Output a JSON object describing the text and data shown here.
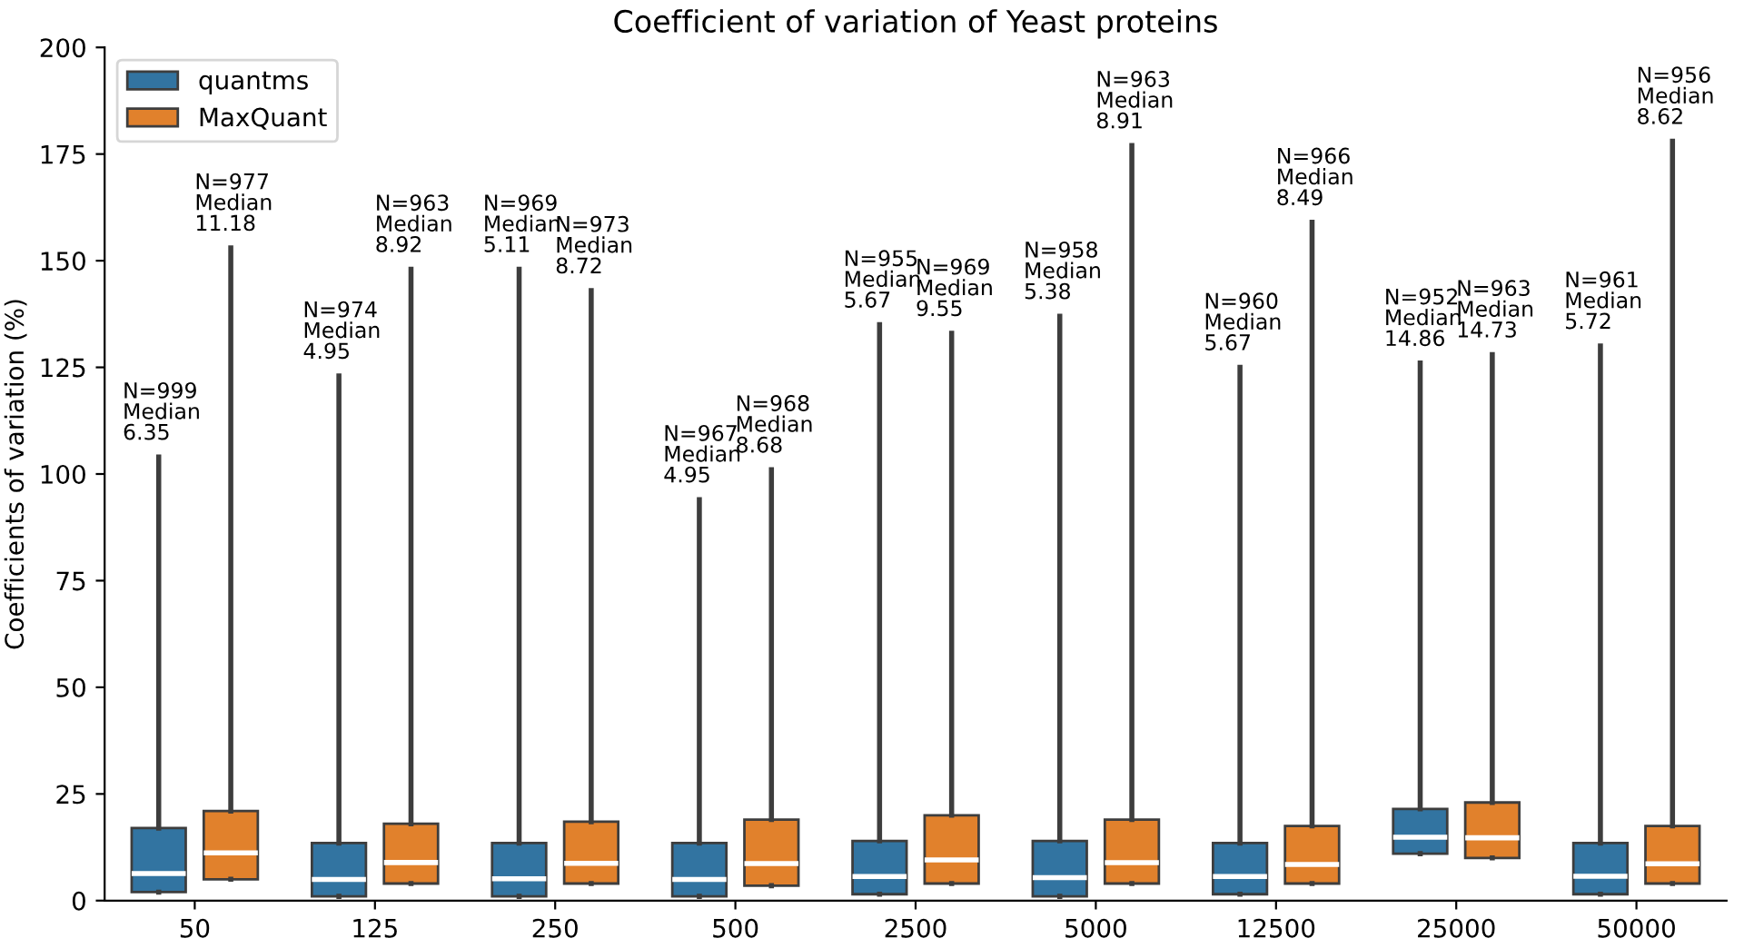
{
  "chart_data": {
    "type": "box",
    "title": "Coefficient of variation of Yeast proteins",
    "ylabel": "Coefficients of variation (%)",
    "categories": [
      "50",
      "125",
      "250",
      "500",
      "2500",
      "5000",
      "12500",
      "25000",
      "50000"
    ],
    "ylim": [
      0,
      200
    ],
    "yticks": [
      0,
      25,
      50,
      75,
      100,
      125,
      150,
      175,
      200
    ],
    "legend": "top left",
    "grid": false,
    "series": [
      {
        "name": "quantms",
        "color": "#3274a1",
        "boxes": [
          {
            "q1": 2,
            "median": 6.35,
            "q3": 17,
            "high": 104
          },
          {
            "q1": 1,
            "median": 4.95,
            "q3": 13.5,
            "high": 123
          },
          {
            "q1": 1,
            "median": 5.11,
            "q3": 13.5,
            "high": 148
          },
          {
            "q1": 1,
            "median": 4.95,
            "q3": 13.5,
            "high": 94
          },
          {
            "q1": 1.5,
            "median": 5.67,
            "q3": 14,
            "high": 135
          },
          {
            "q1": 1,
            "median": 5.38,
            "q3": 14,
            "high": 137
          },
          {
            "q1": 1.5,
            "median": 5.67,
            "q3": 13.5,
            "high": 125
          },
          {
            "q1": 11,
            "median": 14.86,
            "q3": 21.5,
            "high": 126
          },
          {
            "q1": 1.5,
            "median": 5.72,
            "q3": 13.5,
            "high": 130
          }
        ]
      },
      {
        "name": "MaxQuant",
        "color": "#e1812c",
        "boxes": [
          {
            "q1": 5,
            "median": 11.18,
            "q3": 21,
            "high": 153
          },
          {
            "q1": 4,
            "median": 8.92,
            "q3": 18,
            "high": 148
          },
          {
            "q1": 4,
            "median": 8.72,
            "q3": 18.5,
            "high": 143
          },
          {
            "q1": 3.5,
            "median": 8.68,
            "q3": 19,
            "high": 101
          },
          {
            "q1": 4,
            "median": 9.55,
            "q3": 20,
            "high": 133
          },
          {
            "q1": 4,
            "median": 8.91,
            "q3": 19,
            "high": 177
          },
          {
            "q1": 4,
            "median": 8.49,
            "q3": 17.5,
            "high": 159
          },
          {
            "q1": 10,
            "median": 14.73,
            "q3": 23,
            "high": 128
          },
          {
            "q1": 4,
            "median": 8.62,
            "q3": 17.5,
            "high": 178
          }
        ]
      }
    ],
    "annotations": [
      "N=999\nMedian\n6.35",
      "N=977\nMedian\n11.18",
      "N=974\nMedian\n4.95",
      "N=963\nMedian\n8.92",
      "N=969\nMedian\n5.11",
      "N=973\nMedian\n8.72",
      "N=967\nMedian\n4.95",
      "N=968\nMedian\n8.68",
      "N=955\nMedian\n5.67",
      "N=969\nMedian\n9.55",
      "N=958\nMedian\n5.38",
      "N=963\nMedian\n8.91",
      "N=960\nMedian\n5.67",
      "N=966\nMedian\n8.49",
      "N=952\nMedian\n14.86",
      "N=963\nMedian\n14.73",
      "N=961\nMedian\n5.72",
      "N=956\nMedian\n8.62"
    ]
  }
}
